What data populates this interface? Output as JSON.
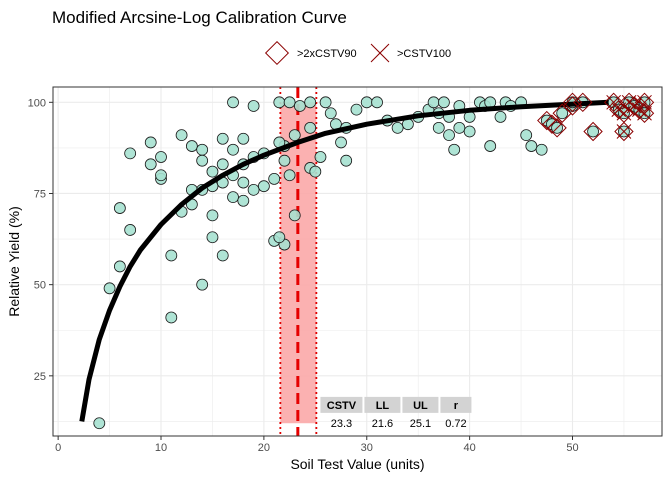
{
  "chart_data": {
    "type": "scatter",
    "title": "Modified Arcsine-Log Calibration Curve",
    "xlabel": "Soil Test Value (units)",
    "ylabel": "Relative Yield (%)",
    "xlim": [
      -0.5,
      58.7
    ],
    "ylim": [
      8.5,
      104.2
    ],
    "xticks": [
      0,
      10,
      20,
      30,
      40,
      50
    ],
    "yticks": [
      25,
      50,
      75,
      100
    ],
    "grid": true,
    "legend_position": "top",
    "legend": [
      {
        "label": ">2xCSTV90",
        "marker": "diamond",
        "color": "#8b0000"
      },
      {
        "label": ">CSTV100",
        "marker": "x",
        "color": "#8b0000"
      }
    ],
    "colors": {
      "points_fill": "#a6e1d0",
      "points_stroke": "#1a1a1a",
      "curve": "#000000",
      "band_fill": "#fba9a9",
      "band_edge": "#e00000",
      "cstv_line": "#e60000",
      "flag_marker": "#8b0000",
      "grid": "#ebebeb",
      "panel_border": "#333333",
      "table_header": "#d3d3d3"
    },
    "points": [
      {
        "x": 4,
        "y": 12
      },
      {
        "x": 5,
        "y": 49
      },
      {
        "x": 6,
        "y": 55
      },
      {
        "x": 6,
        "y": 71
      },
      {
        "x": 7,
        "y": 65
      },
      {
        "x": 7,
        "y": 86
      },
      {
        "x": 9,
        "y": 83
      },
      {
        "x": 9,
        "y": 89
      },
      {
        "x": 10,
        "y": 79
      },
      {
        "x": 10,
        "y": 80
      },
      {
        "x": 10,
        "y": 85
      },
      {
        "x": 11,
        "y": 41
      },
      {
        "x": 11,
        "y": 58
      },
      {
        "x": 12,
        "y": 91
      },
      {
        "x": 12,
        "y": 70
      },
      {
        "x": 13,
        "y": 88
      },
      {
        "x": 13,
        "y": 76
      },
      {
        "x": 13,
        "y": 72
      },
      {
        "x": 14,
        "y": 87
      },
      {
        "x": 14,
        "y": 84
      },
      {
        "x": 14,
        "y": 76
      },
      {
        "x": 14,
        "y": 50
      },
      {
        "x": 15,
        "y": 81
      },
      {
        "x": 15,
        "y": 77
      },
      {
        "x": 15,
        "y": 69
      },
      {
        "x": 15,
        "y": 63
      },
      {
        "x": 16,
        "y": 90
      },
      {
        "x": 16,
        "y": 83
      },
      {
        "x": 16,
        "y": 78
      },
      {
        "x": 16,
        "y": 58
      },
      {
        "x": 17,
        "y": 100
      },
      {
        "x": 17,
        "y": 87
      },
      {
        "x": 17,
        "y": 80
      },
      {
        "x": 17,
        "y": 74
      },
      {
        "x": 18,
        "y": 90
      },
      {
        "x": 18,
        "y": 83
      },
      {
        "x": 18,
        "y": 78
      },
      {
        "x": 18,
        "y": 73
      },
      {
        "x": 19,
        "y": 99
      },
      {
        "x": 19,
        "y": 85
      },
      {
        "x": 19,
        "y": 76
      },
      {
        "x": 20,
        "y": 86
      },
      {
        "x": 20,
        "y": 77
      },
      {
        "x": 21,
        "y": 62
      },
      {
        "x": 21,
        "y": 79
      },
      {
        "x": 22,
        "y": 61
      },
      {
        "x": 22,
        "y": 88
      },
      {
        "x": 22,
        "y": 84
      },
      {
        "x": 21.5,
        "y": 63
      },
      {
        "x": 21.5,
        "y": 89
      },
      {
        "x": 21.5,
        "y": 100
      },
      {
        "x": 22.5,
        "y": 100
      },
      {
        "x": 22.5,
        "y": 80
      },
      {
        "x": 23,
        "y": 69
      },
      {
        "x": 23,
        "y": 91
      },
      {
        "x": 23.5,
        "y": 99
      },
      {
        "x": 24.5,
        "y": 100
      },
      {
        "x": 24.5,
        "y": 93
      },
      {
        "x": 24.5,
        "y": 82
      },
      {
        "x": 25,
        "y": 81
      },
      {
        "x": 25.5,
        "y": 85
      },
      {
        "x": 26,
        "y": 100
      },
      {
        "x": 26.5,
        "y": 97
      },
      {
        "x": 27,
        "y": 94
      },
      {
        "x": 27.5,
        "y": 89
      },
      {
        "x": 28,
        "y": 93
      },
      {
        "x": 28,
        "y": 84
      },
      {
        "x": 29,
        "y": 98
      },
      {
        "x": 30,
        "y": 100
      },
      {
        "x": 31,
        "y": 100
      },
      {
        "x": 32,
        "y": 95
      },
      {
        "x": 33,
        "y": 93
      },
      {
        "x": 34,
        "y": 94
      },
      {
        "x": 35,
        "y": 96
      },
      {
        "x": 36,
        "y": 98
      },
      {
        "x": 36.5,
        "y": 100
      },
      {
        "x": 37,
        "y": 97
      },
      {
        "x": 37,
        "y": 93
      },
      {
        "x": 37.5,
        "y": 100
      },
      {
        "x": 38,
        "y": 96
      },
      {
        "x": 38,
        "y": 91
      },
      {
        "x": 38.5,
        "y": 87
      },
      {
        "x": 39,
        "y": 99
      },
      {
        "x": 39,
        "y": 93
      },
      {
        "x": 40,
        "y": 96
      },
      {
        "x": 40,
        "y": 92
      },
      {
        "x": 41,
        "y": 100
      },
      {
        "x": 41.5,
        "y": 99
      },
      {
        "x": 42,
        "y": 100
      },
      {
        "x": 42,
        "y": 88
      },
      {
        "x": 43,
        "y": 96
      },
      {
        "x": 43.5,
        "y": 100
      },
      {
        "x": 44,
        "y": 99
      },
      {
        "x": 45,
        "y": 100
      },
      {
        "x": 45.5,
        "y": 91
      },
      {
        "x": 46,
        "y": 88
      },
      {
        "x": 47,
        "y": 87
      },
      {
        "x": 47.5,
        "y": 95
      },
      {
        "x": 48,
        "y": 94
      },
      {
        "x": 48.5,
        "y": 93
      },
      {
        "x": 49,
        "y": 97
      },
      {
        "x": 50,
        "y": 99
      },
      {
        "x": 50,
        "y": 100
      },
      {
        "x": 51,
        "y": 100
      },
      {
        "x": 52,
        "y": 92
      },
      {
        "x": 54,
        "y": 100
      },
      {
        "x": 54.5,
        "y": 98
      },
      {
        "x": 55,
        "y": 97
      },
      {
        "x": 55,
        "y": 92
      },
      {
        "x": 55.5,
        "y": 100
      },
      {
        "x": 56,
        "y": 99
      },
      {
        "x": 56.5,
        "y": 98
      },
      {
        "x": 57,
        "y": 100
      },
      {
        "x": 57,
        "y": 97
      }
    ],
    "flag_2x_cstv90": [
      {
        "x": 47.5,
        "y": 95
      },
      {
        "x": 48,
        "y": 94
      },
      {
        "x": 48.5,
        "y": 93
      },
      {
        "x": 49,
        "y": 97
      },
      {
        "x": 50,
        "y": 99
      },
      {
        "x": 50,
        "y": 100
      },
      {
        "x": 51,
        "y": 100
      },
      {
        "x": 52,
        "y": 92
      },
      {
        "x": 54,
        "y": 100
      },
      {
        "x": 54.5,
        "y": 98
      },
      {
        "x": 55,
        "y": 97
      },
      {
        "x": 55,
        "y": 92
      },
      {
        "x": 55.5,
        "y": 100
      },
      {
        "x": 56,
        "y": 99
      },
      {
        "x": 56.5,
        "y": 98
      },
      {
        "x": 57,
        "y": 100
      },
      {
        "x": 57,
        "y": 97
      }
    ],
    "flag_cstv100": [
      {
        "x": 54,
        "y": 100
      },
      {
        "x": 54.5,
        "y": 98
      },
      {
        "x": 55,
        "y": 97
      },
      {
        "x": 55,
        "y": 92
      },
      {
        "x": 55.5,
        "y": 100
      },
      {
        "x": 56,
        "y": 99
      },
      {
        "x": 56.5,
        "y": 98
      },
      {
        "x": 57,
        "y": 100
      },
      {
        "x": 57,
        "y": 97
      }
    ],
    "fitted_curve": [
      {
        "x": 2.3,
        "y": 12.5
      },
      {
        "x": 3,
        "y": 24
      },
      {
        "x": 4,
        "y": 35
      },
      {
        "x": 5,
        "y": 43
      },
      {
        "x": 6,
        "y": 49.5
      },
      {
        "x": 7,
        "y": 55
      },
      {
        "x": 8,
        "y": 59.5
      },
      {
        "x": 10,
        "y": 66.5
      },
      {
        "x": 12,
        "y": 72
      },
      {
        "x": 14,
        "y": 76.5
      },
      {
        "x": 16,
        "y": 80
      },
      {
        "x": 18,
        "y": 83
      },
      {
        "x": 20,
        "y": 85.5
      },
      {
        "x": 23.3,
        "y": 89
      },
      {
        "x": 26,
        "y": 91.5
      },
      {
        "x": 30,
        "y": 94
      },
      {
        "x": 35,
        "y": 96.3
      },
      {
        "x": 40,
        "y": 97.8
      },
      {
        "x": 45,
        "y": 98.8
      },
      {
        "x": 50,
        "y": 99.5
      },
      {
        "x": 53.5,
        "y": 100
      }
    ],
    "cstv_band": {
      "cstv": 23.3,
      "lower": 21.6,
      "upper": 25.1,
      "ymin": 12,
      "ymax": 100
    },
    "table": {
      "headers": [
        "CSTV",
        "LL",
        "UL",
        "r"
      ],
      "values": [
        "23.3",
        "21.6",
        "25.1",
        "0.72"
      ],
      "anchor_x": 25.4,
      "anchor_y": 19.5
    }
  }
}
